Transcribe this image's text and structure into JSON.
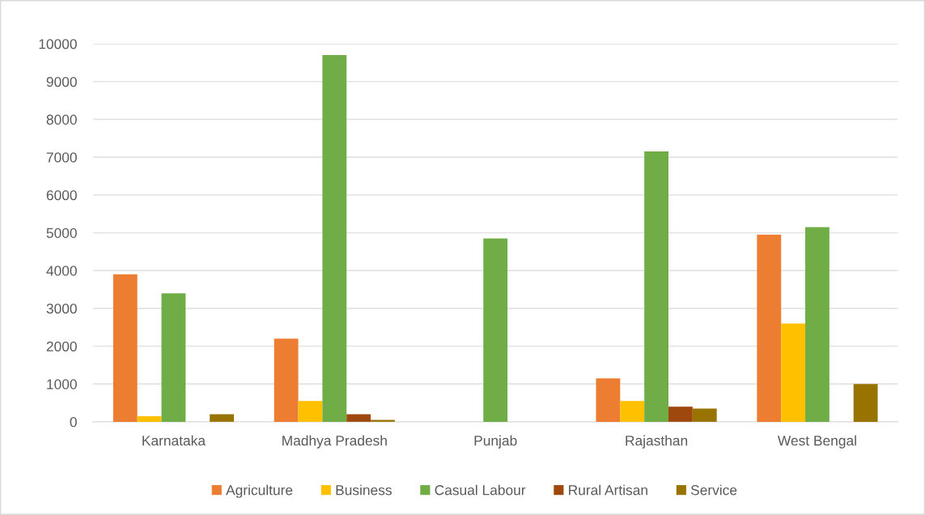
{
  "chart_data": {
    "type": "bar",
    "categories": [
      "Karnataka",
      "Madhya Pradesh",
      "Punjab",
      "Rajasthan",
      "West Bengal"
    ],
    "series": [
      {
        "name": "Agriculture",
        "color": "#ed7d31",
        "values": [
          3900,
          2200,
          0,
          1150,
          4950
        ]
      },
      {
        "name": "Business",
        "color": "#ffc000",
        "values": [
          150,
          550,
          0,
          550,
          2600
        ]
      },
      {
        "name": "Casual Labour",
        "color": "#70ad47",
        "values": [
          3400,
          9700,
          4850,
          7150,
          5150
        ]
      },
      {
        "name": "Rural Artisan",
        "color": "#9e480e",
        "values": [
          0,
          200,
          0,
          400,
          0
        ]
      },
      {
        "name": "Service",
        "color": "#997300",
        "values": [
          200,
          50,
          0,
          350,
          1000
        ]
      }
    ],
    "ylim": [
      0,
      10000
    ],
    "yticks": [
      0,
      1000,
      2000,
      3000,
      4000,
      5000,
      6000,
      7000,
      8000,
      9000,
      10000
    ],
    "grid": "y",
    "legend": "bottom"
  }
}
